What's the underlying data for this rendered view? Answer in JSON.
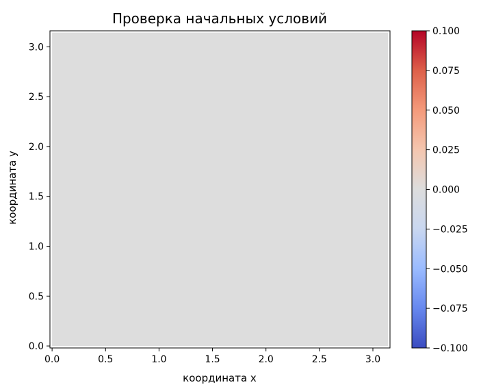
{
  "chart_data": {
    "type": "heatmap",
    "title": "Проверка начальных условий",
    "xlabel": "координата x",
    "ylabel": "координата y",
    "xlim": [
      -0.02,
      3.16
    ],
    "ylim": [
      -0.02,
      3.16
    ],
    "x_ticks": [
      0.0,
      0.5,
      1.0,
      1.5,
      2.0,
      2.5,
      3.0
    ],
    "x_tick_labels": [
      "0.0",
      "0.5",
      "1.0",
      "1.5",
      "2.0",
      "2.5",
      "3.0"
    ],
    "y_ticks": [
      0.0,
      0.5,
      1.0,
      1.5,
      2.0,
      2.5,
      3.0
    ],
    "y_tick_labels": [
      "0.0",
      "0.5",
      "1.0",
      "1.5",
      "2.0",
      "2.5",
      "3.0"
    ],
    "field": {
      "x_range": [
        0,
        3.14159
      ],
      "y_range": [
        0,
        3.14159
      ],
      "value": 0.0,
      "color": "#dddddd"
    },
    "colorbar": {
      "colormap": "coolwarm",
      "min": -0.1,
      "max": 0.1,
      "ticks": [
        0.1,
        0.075,
        0.05,
        0.025,
        0.0,
        -0.025,
        -0.05,
        -0.075,
        -0.1
      ],
      "tick_labels": [
        "0.100",
        "0.075",
        "0.050",
        "0.025",
        "0.000",
        "−0.025",
        "−0.050",
        "−0.075",
        "−0.100"
      ],
      "stops": [
        "#3b4cc0",
        "#6788ee",
        "#9abbff",
        "#c9d7f0",
        "#dddddd",
        "#f4c6af",
        "#f49a7b",
        "#dd604a",
        "#b40426"
      ]
    },
    "grid": false
  }
}
